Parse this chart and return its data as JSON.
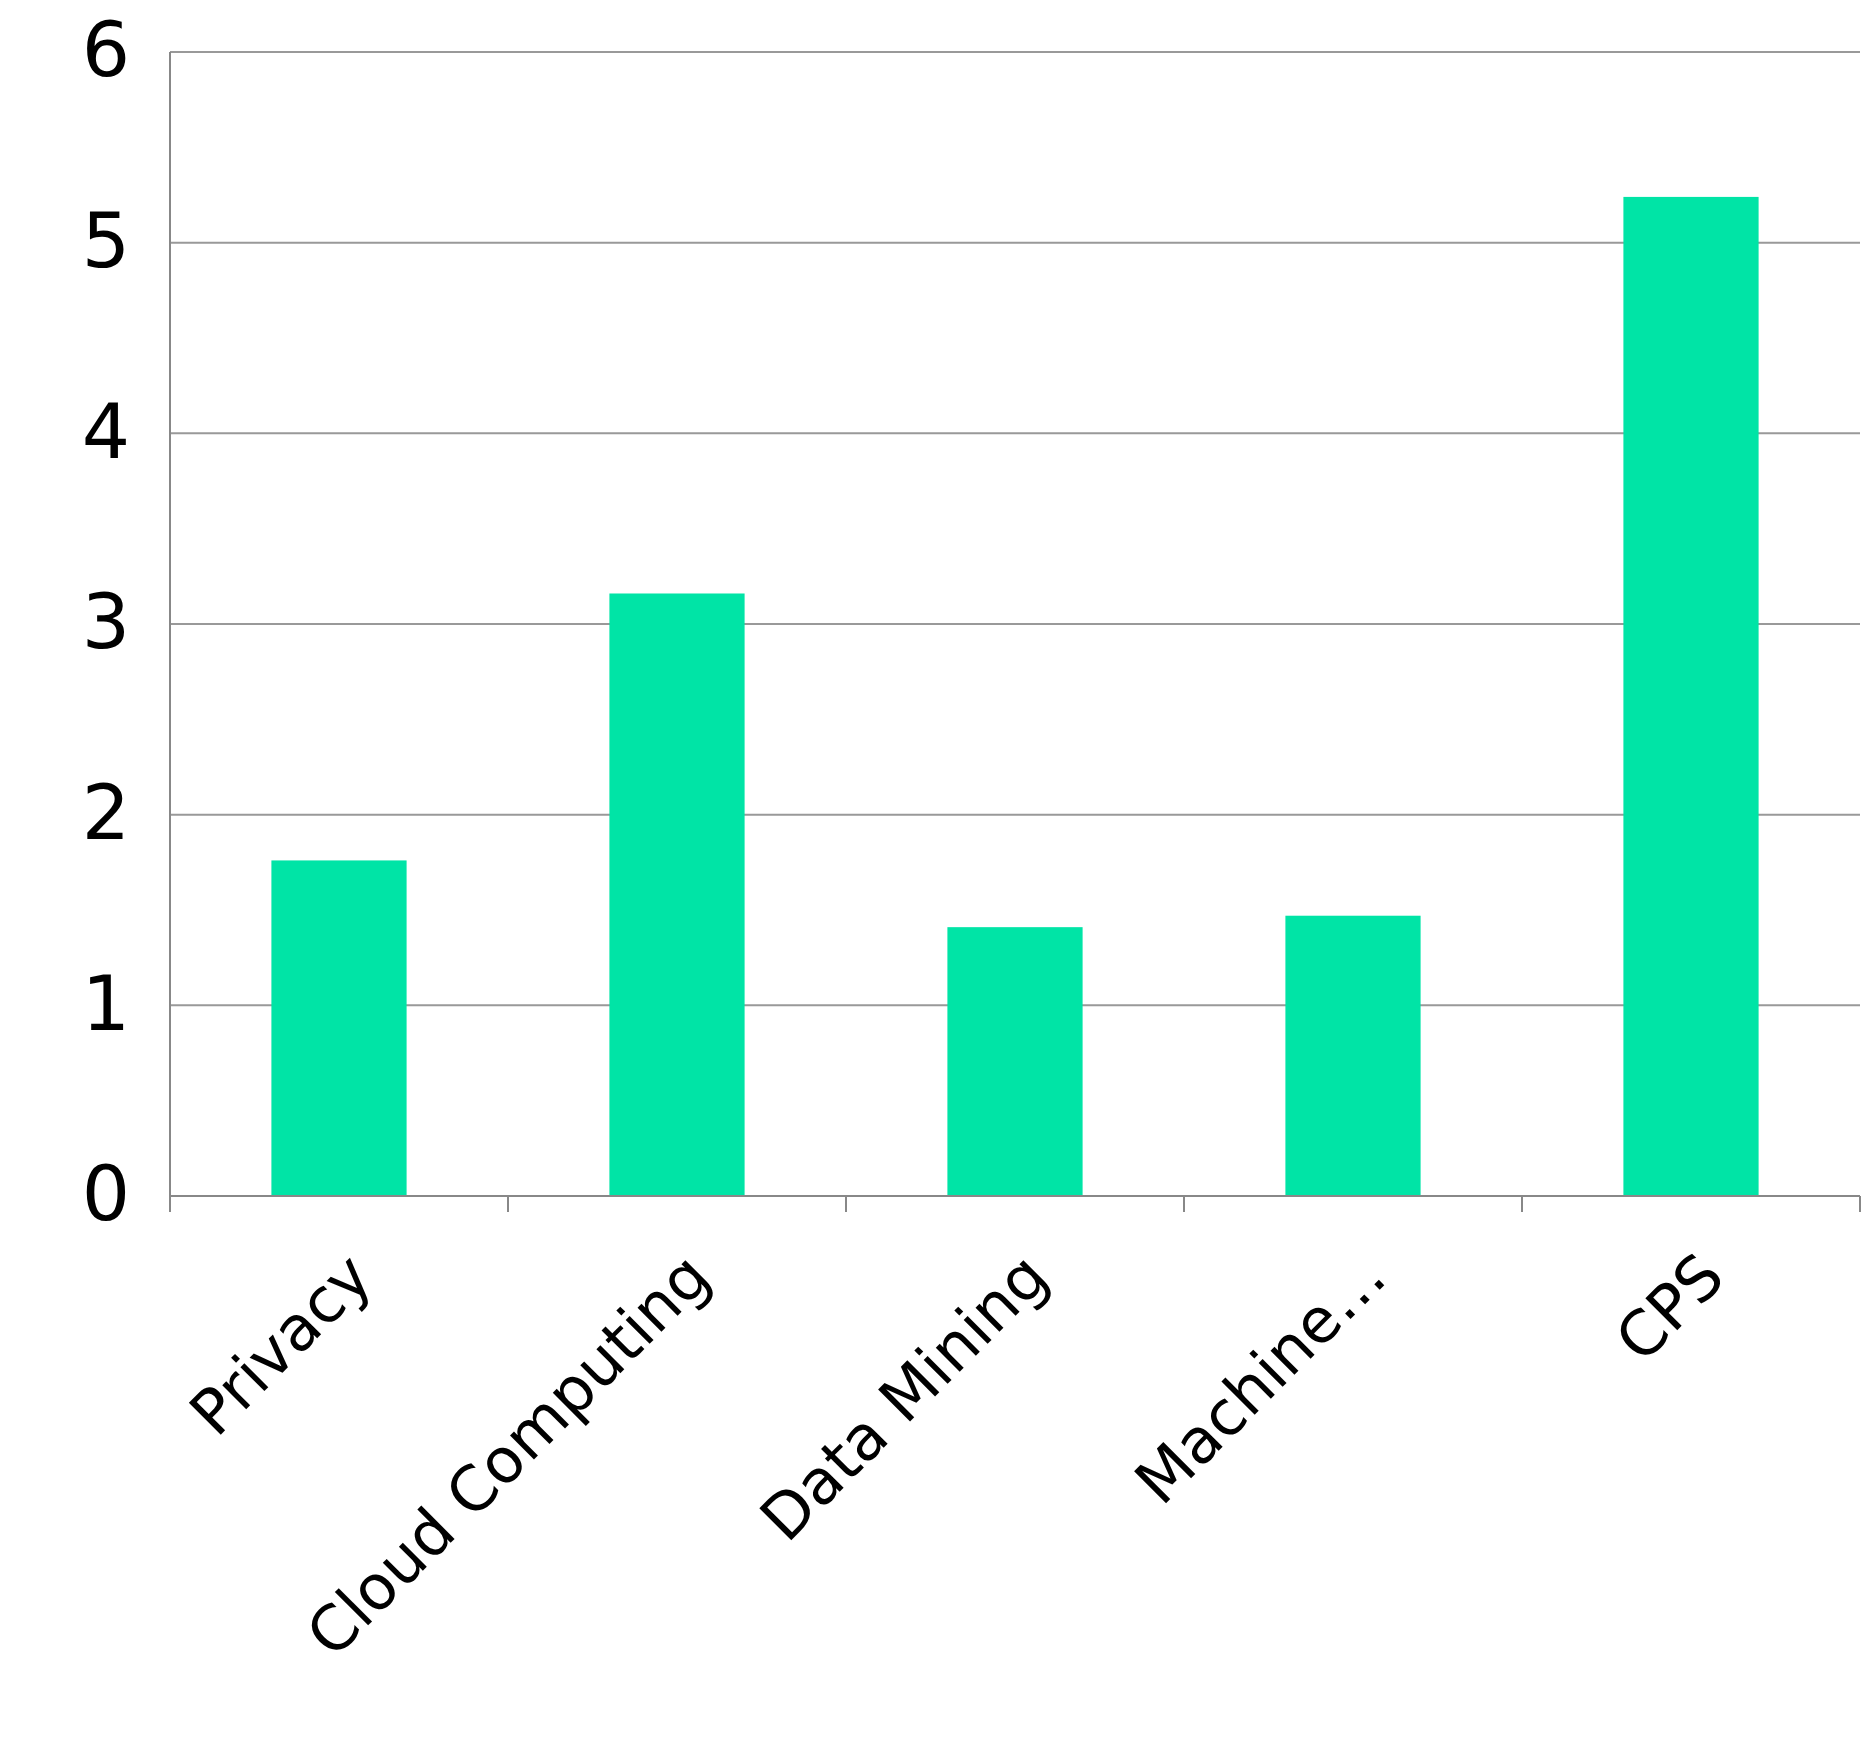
{
  "chart_data": {
    "type": "bar",
    "categories": [
      "Privacy",
      "Cloud Computing",
      "Data Mining",
      "Machine…",
      "CPS"
    ],
    "values": [
      1.76,
      3.16,
      1.41,
      1.47,
      5.24
    ],
    "color": "#00e4a6",
    "ylim": [
      0,
      6
    ],
    "yticks": [
      0,
      1,
      2,
      3,
      4,
      5,
      6
    ],
    "grid": "y"
  }
}
